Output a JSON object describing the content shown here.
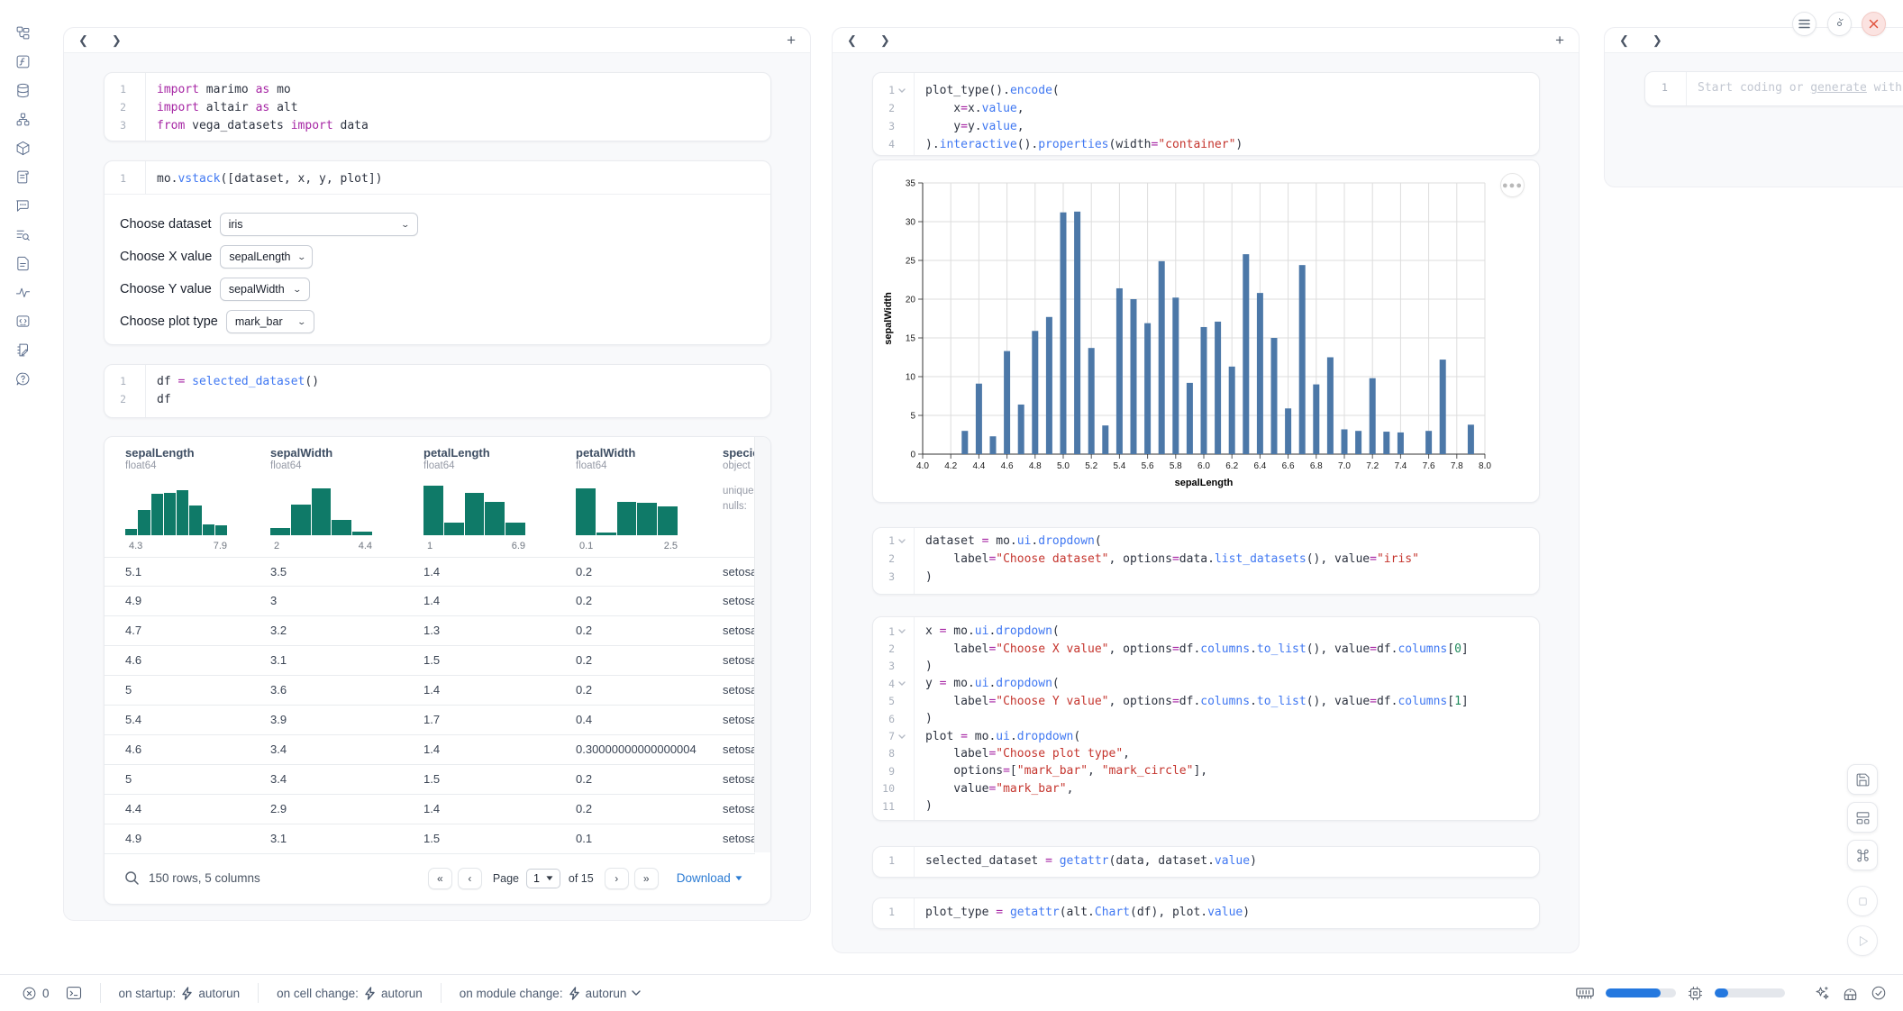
{
  "accent": {
    "link_blue": "#2b7bd3",
    "bar_blue": "#4c78a8",
    "hist_teal": "#0f7a68",
    "meter_blue": "#2478df"
  },
  "sidebar": {
    "icons": [
      "file-explorer",
      "variables",
      "datasources",
      "dependency-graph",
      "packages",
      "logs",
      "chat",
      "table-of-contents",
      "snippets",
      "tracing",
      "code-block",
      "scratchpad",
      "help"
    ]
  },
  "col1": {
    "imports_cell": {
      "lines": [
        {
          "n": 1,
          "tok": [
            [
              "import",
              "k"
            ],
            [
              " marimo ",
              "d"
            ],
            [
              "as",
              "k"
            ],
            [
              " mo",
              "d"
            ]
          ]
        },
        {
          "n": 2,
          "tok": [
            [
              "import",
              "k"
            ],
            [
              " altair ",
              "d"
            ],
            [
              "as",
              "k"
            ],
            [
              " alt",
              "d"
            ]
          ]
        },
        {
          "n": 3,
          "tok": [
            [
              "from",
              "k"
            ],
            [
              " vega_datasets ",
              "d"
            ],
            [
              "import",
              "k"
            ],
            [
              " data",
              "d"
            ]
          ]
        }
      ]
    },
    "vstack_cell": {
      "lines": [
        {
          "n": 1,
          "tok": [
            [
              "mo.",
              "d"
            ],
            [
              "vstack",
              "f"
            ],
            [
              "([dataset, x, y, plot])",
              "d"
            ]
          ]
        }
      ]
    },
    "dropdowns": [
      {
        "label": "Choose dataset",
        "value": "iris"
      },
      {
        "label": "Choose X value",
        "value": "sepalLength"
      },
      {
        "label": "Choose Y value",
        "value": "sepalWidth"
      },
      {
        "label": "Choose plot type",
        "value": "mark_bar"
      }
    ],
    "df_cell": {
      "lines": [
        {
          "n": 1,
          "tok": [
            [
              "df ",
              "d"
            ],
            [
              "=",
              "k"
            ],
            [
              " ",
              "d"
            ],
            [
              "selected_dataset",
              "f"
            ],
            [
              "()",
              "d"
            ]
          ]
        },
        {
          "n": 2,
          "tok": [
            [
              "df",
              "d"
            ]
          ]
        }
      ]
    },
    "table": {
      "columns": [
        {
          "name": "sepalLength",
          "dtype": "float64",
          "min": "4.3",
          "max": "7.9",
          "hist": [
            0.13,
            0.5,
            0.83,
            0.85,
            0.9,
            0.6,
            0.22,
            0.2
          ]
        },
        {
          "name": "sepalWidth",
          "dtype": "float64",
          "min": "2",
          "max": "4.4",
          "hist": [
            0.15,
            0.62,
            0.95,
            0.3,
            0.07
          ]
        },
        {
          "name": "petalLength",
          "dtype": "float64",
          "min": "1",
          "max": "6.9",
          "hist": [
            1.0,
            0.25,
            0.85,
            0.68,
            0.25
          ]
        },
        {
          "name": "petalWidth",
          "dtype": "float64",
          "min": "0.1",
          "max": "2.5",
          "hist": [
            0.95,
            0.05,
            0.68,
            0.66,
            0.58
          ]
        },
        {
          "name": "species",
          "dtype": "object",
          "extra": [
            "unique:",
            "nulls:"
          ]
        }
      ],
      "rows": [
        [
          "5.1",
          "3.5",
          "1.4",
          "0.2",
          "setosa"
        ],
        [
          "4.9",
          "3",
          "1.4",
          "0.2",
          "setosa"
        ],
        [
          "4.7",
          "3.2",
          "1.3",
          "0.2",
          "setosa"
        ],
        [
          "4.6",
          "3.1",
          "1.5",
          "0.2",
          "setosa"
        ],
        [
          "5",
          "3.6",
          "1.4",
          "0.2",
          "setosa"
        ],
        [
          "5.4",
          "3.9",
          "1.7",
          "0.4",
          "setosa"
        ],
        [
          "4.6",
          "3.4",
          "1.4",
          "0.30000000000000004",
          "setosa"
        ],
        [
          "5",
          "3.4",
          "1.5",
          "0.2",
          "setosa"
        ],
        [
          "4.4",
          "2.9",
          "1.4",
          "0.2",
          "setosa"
        ],
        [
          "4.9",
          "3.1",
          "1.5",
          "0.1",
          "setosa"
        ]
      ],
      "footer": {
        "summary": "150 rows, 5 columns",
        "page_label": "Page",
        "page_value": "1",
        "of_label": "of 15",
        "download_label": "Download"
      }
    }
  },
  "col2": {
    "plot_cell": {
      "lines": [
        {
          "n": 1,
          "chev": true,
          "tok": [
            [
              "plot_type",
              "d"
            ],
            [
              "().",
              "d"
            ],
            [
              "encode",
              "f"
            ],
            [
              "(",
              "d"
            ]
          ]
        },
        {
          "n": 2,
          "tok": [
            [
              "    x",
              "d"
            ],
            [
              "=",
              "k"
            ],
            [
              "x.",
              "d"
            ],
            [
              "value",
              "f"
            ],
            [
              ",",
              "d"
            ]
          ]
        },
        {
          "n": 3,
          "tok": [
            [
              "    y",
              "d"
            ],
            [
              "=",
              "k"
            ],
            [
              "y.",
              "d"
            ],
            [
              "value",
              "f"
            ],
            [
              ",",
              "d"
            ]
          ]
        },
        {
          "n": 4,
          "tok": [
            [
              ").",
              "d"
            ],
            [
              "interactive",
              "f"
            ],
            [
              "().",
              "d"
            ],
            [
              "properties",
              "f"
            ],
            [
              "(width",
              "d"
            ],
            [
              "=",
              "k"
            ],
            [
              "\"container\"",
              "s"
            ],
            [
              ")",
              "d"
            ]
          ]
        }
      ]
    },
    "dataset_cell": {
      "lines": [
        {
          "n": 1,
          "chev": true,
          "tok": [
            [
              "dataset ",
              "d"
            ],
            [
              "=",
              "k"
            ],
            [
              " mo.",
              "d"
            ],
            [
              "ui",
              "f"
            ],
            [
              ".",
              "d"
            ],
            [
              "dropdown",
              "f"
            ],
            [
              "(",
              "d"
            ]
          ]
        },
        {
          "n": 2,
          "tok": [
            [
              "    label",
              "d"
            ],
            [
              "=",
              "k"
            ],
            [
              "\"Choose dataset\"",
              "s"
            ],
            [
              ", options",
              "d"
            ],
            [
              "=",
              "k"
            ],
            [
              "data.",
              "d"
            ],
            [
              "list_datasets",
              "f"
            ],
            [
              "(), value",
              "d"
            ],
            [
              "=",
              "k"
            ],
            [
              "\"iris\"",
              "s"
            ]
          ]
        },
        {
          "n": 3,
          "tok": [
            [
              ")",
              "d"
            ]
          ]
        }
      ]
    },
    "xyplot_cell": {
      "lines": [
        {
          "n": 1,
          "chev": true,
          "tok": [
            [
              "x ",
              "d"
            ],
            [
              "=",
              "k"
            ],
            [
              " mo.",
              "d"
            ],
            [
              "ui",
              "f"
            ],
            [
              ".",
              "d"
            ],
            [
              "dropdown",
              "f"
            ],
            [
              "(",
              "d"
            ]
          ]
        },
        {
          "n": 2,
          "tok": [
            [
              "    label",
              "d"
            ],
            [
              "=",
              "k"
            ],
            [
              "\"Choose X value\"",
              "s"
            ],
            [
              ", options",
              "d"
            ],
            [
              "=",
              "k"
            ],
            [
              "df.",
              "d"
            ],
            [
              "columns",
              "f"
            ],
            [
              ".",
              "d"
            ],
            [
              "to_list",
              "f"
            ],
            [
              "(), value",
              "d"
            ],
            [
              "=",
              "k"
            ],
            [
              "df.",
              "d"
            ],
            [
              "columns",
              "f"
            ],
            [
              "[",
              "d"
            ],
            [
              "0",
              "n"
            ],
            [
              "]",
              "d"
            ]
          ]
        },
        {
          "n": 3,
          "tok": [
            [
              ")",
              "d"
            ]
          ]
        },
        {
          "n": 4,
          "chev": true,
          "tok": [
            [
              "y ",
              "d"
            ],
            [
              "=",
              "k"
            ],
            [
              " mo.",
              "d"
            ],
            [
              "ui",
              "f"
            ],
            [
              ".",
              "d"
            ],
            [
              "dropdown",
              "f"
            ],
            [
              "(",
              "d"
            ]
          ]
        },
        {
          "n": 5,
          "tok": [
            [
              "    label",
              "d"
            ],
            [
              "=",
              "k"
            ],
            [
              "\"Choose Y value\"",
              "s"
            ],
            [
              ", options",
              "d"
            ],
            [
              "=",
              "k"
            ],
            [
              "df.",
              "d"
            ],
            [
              "columns",
              "f"
            ],
            [
              ".",
              "d"
            ],
            [
              "to_list",
              "f"
            ],
            [
              "(), value",
              "d"
            ],
            [
              "=",
              "k"
            ],
            [
              "df.",
              "d"
            ],
            [
              "columns",
              "f"
            ],
            [
              "[",
              "d"
            ],
            [
              "1",
              "n"
            ],
            [
              "]",
              "d"
            ]
          ]
        },
        {
          "n": 6,
          "tok": [
            [
              ")",
              "d"
            ]
          ]
        },
        {
          "n": 7,
          "chev": true,
          "tok": [
            [
              "plot ",
              "d"
            ],
            [
              "=",
              "k"
            ],
            [
              " mo.",
              "d"
            ],
            [
              "ui",
              "f"
            ],
            [
              ".",
              "d"
            ],
            [
              "dropdown",
              "f"
            ],
            [
              "(",
              "d"
            ]
          ]
        },
        {
          "n": 8,
          "tok": [
            [
              "    label",
              "d"
            ],
            [
              "=",
              "k"
            ],
            [
              "\"Choose plot type\"",
              "s"
            ],
            [
              ",",
              "d"
            ]
          ]
        },
        {
          "n": 9,
          "tok": [
            [
              "    options",
              "d"
            ],
            [
              "=",
              "k"
            ],
            [
              "[",
              "d"
            ],
            [
              "\"mark_bar\"",
              "s"
            ],
            [
              ", ",
              "d"
            ],
            [
              "\"mark_circle\"",
              "s"
            ],
            [
              "],",
              "d"
            ]
          ]
        },
        {
          "n": 10,
          "tok": [
            [
              "    value",
              "d"
            ],
            [
              "=",
              "k"
            ],
            [
              "\"mark_bar\"",
              "s"
            ],
            [
              ",",
              "d"
            ]
          ]
        },
        {
          "n": 11,
          "tok": [
            [
              ")",
              "d"
            ]
          ]
        }
      ]
    },
    "selected_cell": {
      "lines": [
        {
          "n": 1,
          "tok": [
            [
              "selected_dataset ",
              "d"
            ],
            [
              "=",
              "k"
            ],
            [
              " ",
              "d"
            ],
            [
              "getattr",
              "f"
            ],
            [
              "(data, dataset.",
              "d"
            ],
            [
              "value",
              "f"
            ],
            [
              ")",
              "d"
            ]
          ]
        }
      ]
    },
    "plot_type_cell": {
      "lines": [
        {
          "n": 1,
          "tok": [
            [
              "plot_type ",
              "d"
            ],
            [
              "=",
              "k"
            ],
            [
              " ",
              "d"
            ],
            [
              "getattr",
              "f"
            ],
            [
              "(alt.",
              "d"
            ],
            [
              "Chart",
              "f"
            ],
            [
              "(df), plot.",
              "d"
            ],
            [
              "value",
              "f"
            ],
            [
              ")",
              "d"
            ]
          ]
        }
      ]
    }
  },
  "chart_data": {
    "type": "bar",
    "x": [
      4.3,
      4.4,
      4.5,
      4.6,
      4.7,
      4.8,
      4.9,
      5.0,
      5.1,
      5.2,
      5.3,
      5.4,
      5.5,
      5.6,
      5.7,
      5.8,
      5.9,
      6.0,
      6.1,
      6.2,
      6.3,
      6.4,
      6.5,
      6.6,
      6.7,
      6.8,
      6.9,
      7.0,
      7.1,
      7.2,
      7.3,
      7.4,
      7.6,
      7.7,
      7.9
    ],
    "values": [
      3.0,
      9.1,
      2.3,
      13.3,
      6.4,
      15.9,
      17.7,
      31.2,
      31.3,
      13.7,
      3.7,
      21.4,
      20.0,
      16.9,
      24.9,
      20.2,
      9.2,
      16.4,
      17.1,
      11.3,
      25.8,
      20.8,
      15.0,
      5.9,
      24.4,
      9.0,
      12.5,
      3.2,
      3.0,
      9.8,
      2.9,
      2.8,
      3.0,
      12.2,
      3.8
    ],
    "title": "",
    "xlabel": "sepalLength",
    "ylabel": "sepalWidth",
    "xlim": [
      4.0,
      8.0
    ],
    "ylim": [
      0,
      35
    ],
    "x_tick_step": 0.2,
    "y_tick_step": 5,
    "grid": true,
    "bar_color": "#4c78a8",
    "legend": null
  },
  "col3": {
    "scratch_cell": {
      "line_number": "1",
      "placeholder_prefix": "Start coding or ",
      "placeholder_link": "generate",
      "placeholder_suffix": " with "
    }
  },
  "statusbar": {
    "error_count": "0",
    "items": [
      {
        "label": "on startup:",
        "action": "autorun",
        "chevron": false
      },
      {
        "label": "on cell change:",
        "action": "autorun",
        "chevron": false
      },
      {
        "label": "on module change:",
        "action": "autorun",
        "chevron": true
      }
    ],
    "ram_pct": 78,
    "cpu_pct": 19
  }
}
